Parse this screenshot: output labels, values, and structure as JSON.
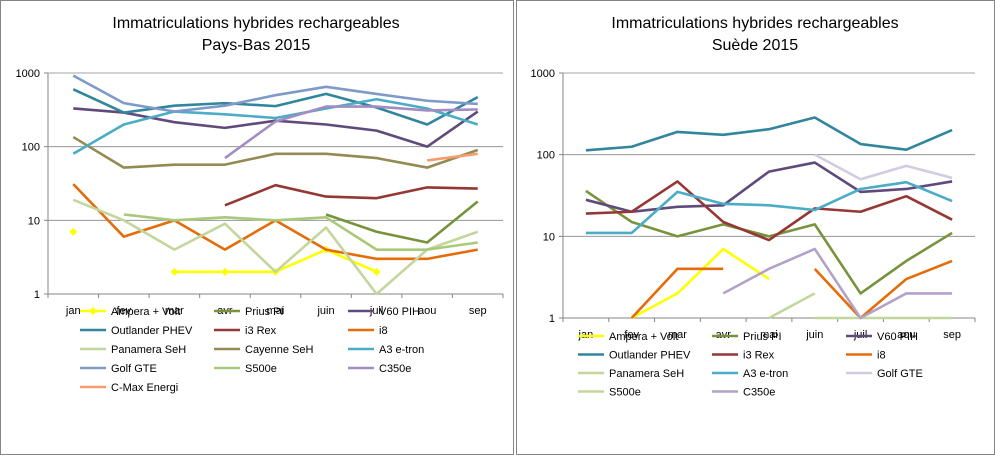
{
  "chart_data": [
    {
      "type": "line",
      "title_line1": "Immatriculations hybrides rechargeables",
      "title_line2": "Pays-Bas 2015",
      "yscale": "log",
      "ylim": [
        1,
        1000
      ],
      "y_ticks": [
        "1",
        "10",
        "100",
        "1000"
      ],
      "categories": [
        "jan",
        "fev",
        "mar",
        "avr",
        "mai",
        "juin",
        "juil",
        "aou",
        "sep"
      ],
      "grid": true,
      "legend": "bottom",
      "series": [
        {
          "name": "Ampera + Volt",
          "color": "#ffff00",
          "values": [
            7,
            null,
            2,
            2,
            2,
            4,
            2,
            null,
            null
          ]
        },
        {
          "name": "Prius PI",
          "color": "#77933c",
          "values": [
            null,
            null,
            null,
            null,
            null,
            12,
            7,
            5,
            18
          ]
        },
        {
          "name": "V60 PIH",
          "color": "#604a7b",
          "values": [
            330,
            290,
            215,
            180,
            225,
            200,
            165,
            100,
            300
          ]
        },
        {
          "name": "Outlander PHEV",
          "color": "#31859c",
          "values": [
            600,
            290,
            360,
            390,
            355,
            520,
            340,
            200,
            470
          ]
        },
        {
          "name": "i3 Rex",
          "color": "#953735",
          "values": [
            null,
            null,
            null,
            16,
            30,
            21,
            20,
            28,
            27
          ]
        },
        {
          "name": "i8",
          "color": "#e46c0a",
          "values": [
            31,
            6,
            10,
            4,
            10,
            4,
            3,
            3,
            4
          ]
        },
        {
          "name": "Panamera SeH",
          "color": "#c3d69b",
          "values": [
            19,
            10,
            4,
            9,
            2,
            8,
            1,
            4,
            7
          ]
        },
        {
          "name": "Cayenne SeH",
          "color": "#948a54",
          "values": [
            135,
            52,
            57,
            57,
            80,
            80,
            70,
            52,
            90
          ]
        },
        {
          "name": "A3 e-tron",
          "color": "#4bacc6",
          "values": [
            80,
            200,
            300,
            275,
            245,
            330,
            440,
            330,
            200
          ]
        },
        {
          "name": "Golf GTE",
          "color": "#7f99c9",
          "values": [
            920,
            390,
            300,
            360,
            500,
            650,
            520,
            420,
            380
          ]
        },
        {
          "name": "S500e",
          "color": "#a9c97a",
          "values": [
            null,
            12,
            10,
            11,
            10,
            11,
            4,
            4,
            5
          ]
        },
        {
          "name": "C350e",
          "color": "#a38cc2",
          "values": [
            null,
            null,
            null,
            70,
            220,
            350,
            350,
            310,
            320
          ]
        },
        {
          "name": "C-Max Energi",
          "color": "#f79c6c",
          "values": [
            null,
            null,
            null,
            null,
            null,
            null,
            null,
            65,
            80
          ]
        }
      ]
    },
    {
      "type": "line",
      "title_line1": "Immatriculations hybrides rechargeables",
      "title_line2": "Suède 2015",
      "yscale": "log",
      "ylim": [
        1,
        1000
      ],
      "y_ticks": [
        "1",
        "10",
        "100",
        "1000"
      ],
      "categories": [
        "jan",
        "fev",
        "mar",
        "avr",
        "mai",
        "juin",
        "juil",
        "aou",
        "sep"
      ],
      "grid": true,
      "legend": "bottom",
      "series": [
        {
          "name": "Ampera + Volt",
          "color": "#ffff00",
          "values": [
            null,
            1,
            2,
            7,
            3,
            null,
            null,
            null,
            null
          ]
        },
        {
          "name": "Prius PI",
          "color": "#77933c",
          "values": [
            36,
            15,
            10,
            14,
            10,
            14,
            2,
            5,
            11
          ]
        },
        {
          "name": "V60 PIH",
          "color": "#604a7b",
          "values": [
            28,
            20,
            23,
            24,
            62,
            80,
            35,
            38,
            47
          ]
        },
        {
          "name": "Outlander PHEV",
          "color": "#31859c",
          "values": [
            113,
            125,
            190,
            175,
            205,
            285,
            135,
            115,
            200
          ]
        },
        {
          "name": "i3 Rex",
          "color": "#953735",
          "values": [
            19,
            20,
            47,
            15,
            9,
            22,
            20,
            31,
            16
          ]
        },
        {
          "name": "i8",
          "color": "#e46c0a",
          "values": [
            null,
            1,
            4,
            4,
            null,
            4,
            1,
            3,
            5
          ]
        },
        {
          "name": "Panamera SeH",
          "color": "#c3d69b",
          "values": [
            null,
            null,
            null,
            null,
            1,
            2,
            null,
            null,
            null
          ]
        },
        {
          "name": "A3 e-tron",
          "color": "#4bacc6",
          "values": [
            11,
            11,
            35,
            25,
            24,
            21,
            38,
            46,
            27
          ]
        },
        {
          "name": "Golf GTE",
          "color": "#d3cbe0",
          "values": [
            null,
            null,
            null,
            null,
            null,
            100,
            50,
            73,
            52
          ]
        },
        {
          "name": "S500e",
          "color": "#c3d69b",
          "values": [
            null,
            null,
            null,
            null,
            null,
            1,
            1,
            1,
            1
          ]
        },
        {
          "name": "C350e",
          "color": "#b3a2c7",
          "values": [
            null,
            null,
            null,
            2,
            4,
            7,
            1,
            2,
            2
          ]
        }
      ]
    }
  ]
}
